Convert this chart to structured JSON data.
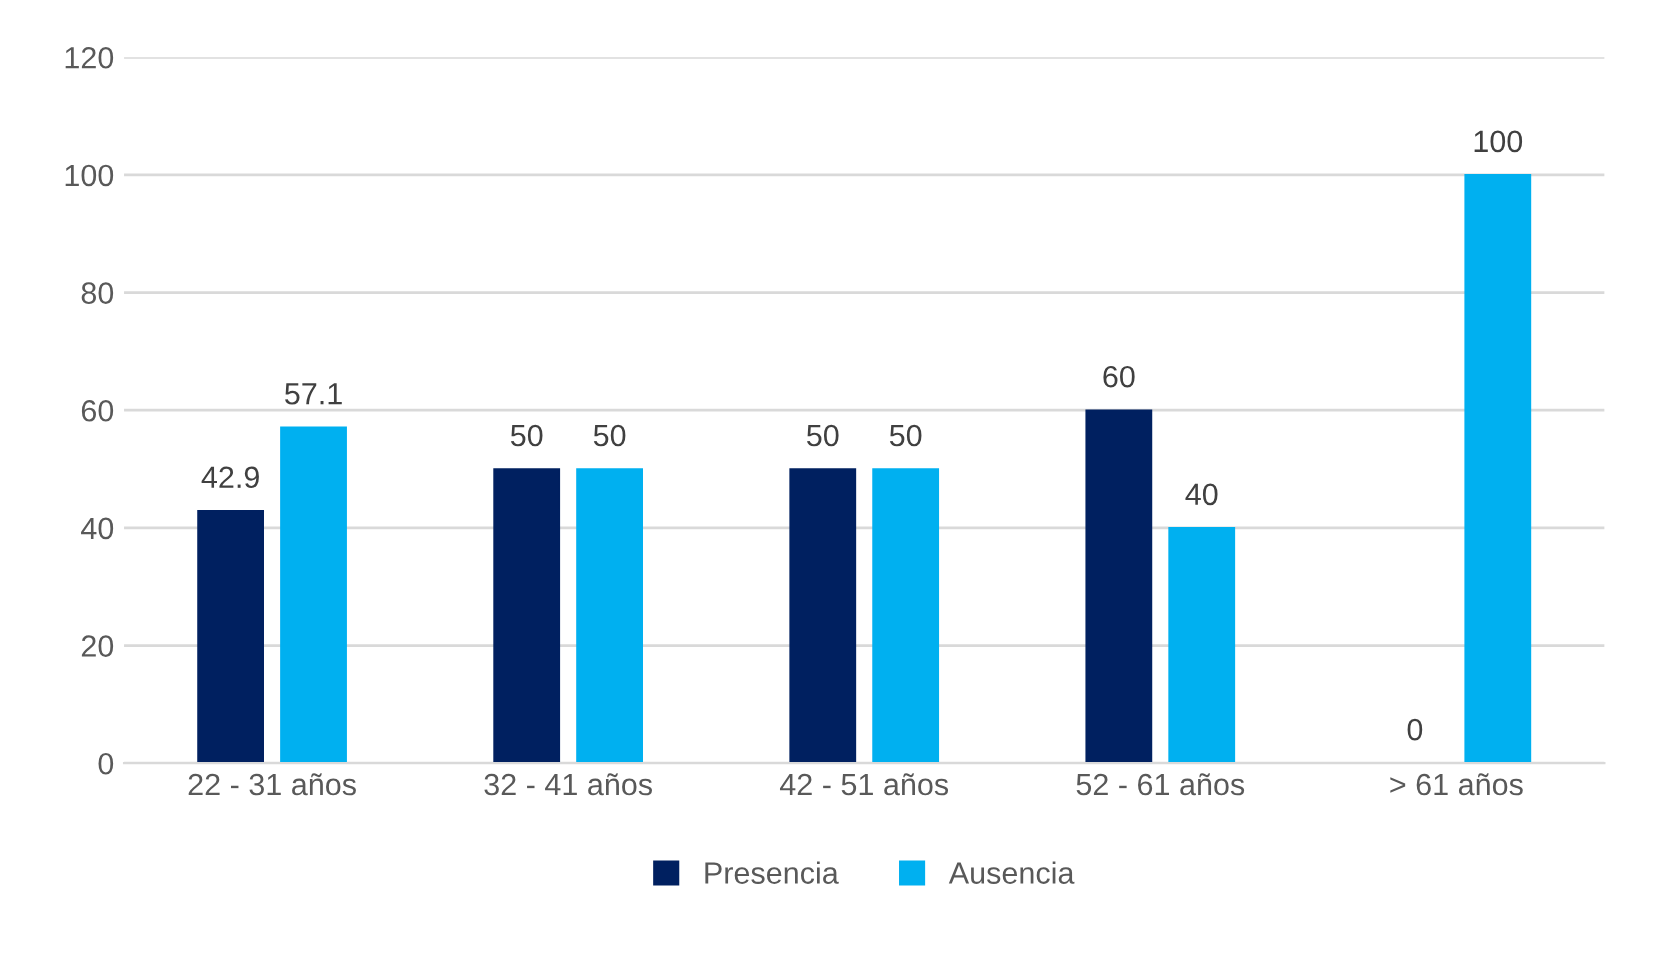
{
  "chart_data": {
    "type": "bar",
    "categories": [
      "22 - 31 años",
      "32 - 41 años",
      "42 - 51 años",
      "52 - 61 años",
      "> 61 años"
    ],
    "series": [
      {
        "name": "Presencia",
        "color": "#002060",
        "values": [
          42.9,
          50,
          50,
          60,
          0
        ]
      },
      {
        "name": "Ausencia",
        "color": "#00b0f0",
        "values": [
          57.1,
          50,
          50,
          40,
          100
        ]
      }
    ],
    "ylim": [
      0,
      120
    ],
    "yticks": [
      0,
      20,
      40,
      60,
      80,
      100,
      120
    ],
    "grid": "y",
    "legend": "bottom",
    "data_labels": true
  }
}
